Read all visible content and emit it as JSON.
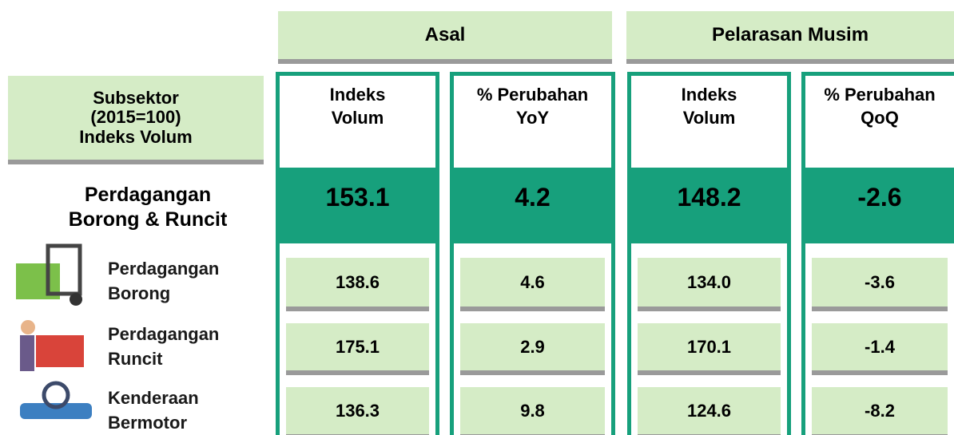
{
  "header": {
    "groups": [
      "Asal",
      "Pelarasan Musim"
    ],
    "subsector": [
      "Subsektor",
      "(2015=100)",
      "Indeks Volum"
    ],
    "columns": [
      [
        "Indeks",
        "Volum"
      ],
      [
        "% Perubahan",
        "YoY"
      ],
      [
        "Indeks",
        "Volum"
      ],
      [
        "% Perubahan",
        "QoQ"
      ]
    ]
  },
  "main_row": {
    "name": [
      "Perdagangan",
      "Borong & Runcit"
    ],
    "values": [
      "153.1",
      "4.2",
      "148.2",
      "-2.6"
    ]
  },
  "rows": [
    {
      "name": [
        "Perdagangan",
        "Borong"
      ],
      "values": [
        "138.6",
        "4.6",
        "134.0",
        "-3.6"
      ]
    },
    {
      "name": [
        "Perdagangan",
        "Runcit"
      ],
      "values": [
        "175.1",
        "2.9",
        "170.1",
        "-1.4"
      ]
    },
    {
      "name": [
        "Kenderaan",
        "Bermotor"
      ],
      "values": [
        "136.3",
        "9.8",
        "124.6",
        "-8.2"
      ]
    }
  ]
}
